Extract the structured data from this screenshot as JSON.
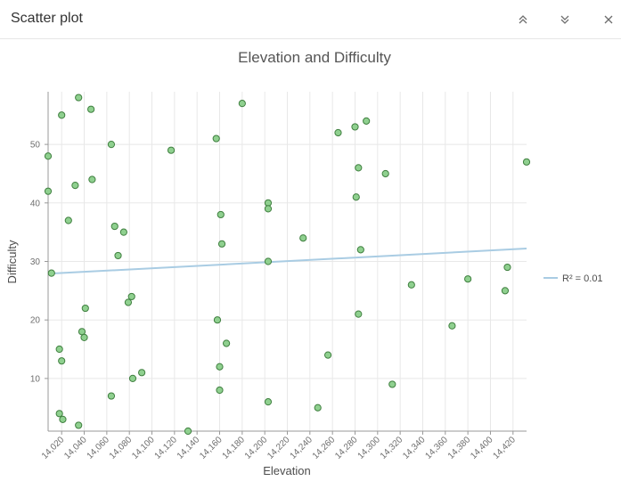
{
  "panel": {
    "title": "Scatter plot"
  },
  "icons": {
    "collapse_up": "double-chevron-up-icon",
    "collapse_down": "double-chevron-down-icon",
    "close": "close-icon"
  },
  "colors": {
    "point_fill": "#8fd08f",
    "point_stroke": "#3f7f3f",
    "trend_line": "#a9cce3",
    "grid": "#e8e8e8",
    "axis": "#999999"
  },
  "chart_data": {
    "type": "scatter",
    "title": "Elevation and Difficulty",
    "xlabel": "Elevation",
    "ylabel": "Difficulty",
    "xlim": [
      14008,
      14432
    ],
    "ylim": [
      1,
      59
    ],
    "xticks": [
      "14,020",
      "14,040",
      "14,060",
      "14,080",
      "14,100",
      "14,120",
      "14,140",
      "14,160",
      "14,180",
      "14,200",
      "14,220",
      "14,240",
      "14,260",
      "14,280",
      "14,300",
      "14,320",
      "14,340",
      "14,360",
      "14,380",
      "14,400",
      "14,420"
    ],
    "yticks": [
      "10",
      "20",
      "30",
      "40",
      "50"
    ],
    "grid": true,
    "legend_position": "right",
    "trendline": {
      "label": "R² = 0.01",
      "start": [
        14008,
        27.9
      ],
      "end": [
        14432,
        32.2
      ]
    },
    "points": [
      [
        14035,
        58
      ],
      [
        14046,
        56
      ],
      [
        14180,
        57
      ],
      [
        14020,
        55
      ],
      [
        14064,
        50
      ],
      [
        14117,
        49
      ],
      [
        14157,
        51
      ],
      [
        14008,
        48
      ],
      [
        14265,
        52
      ],
      [
        14280,
        53
      ],
      [
        14290,
        54
      ],
      [
        14032,
        43
      ],
      [
        14047,
        44
      ],
      [
        14283,
        46
      ],
      [
        14307,
        45
      ],
      [
        14432,
        47
      ],
      [
        14008,
        42
      ],
      [
        14026,
        37
      ],
      [
        14067,
        36
      ],
      [
        14075,
        35
      ],
      [
        14161,
        38
      ],
      [
        14203,
        40
      ],
      [
        14203,
        39
      ],
      [
        14281,
        41
      ],
      [
        14070,
        31
      ],
      [
        14162,
        33
      ],
      [
        14234,
        34
      ],
      [
        14285,
        32
      ],
      [
        14011,
        28
      ],
      [
        14203,
        30
      ],
      [
        14330,
        26
      ],
      [
        14380,
        27
      ],
      [
        14415,
        29
      ],
      [
        14079,
        23
      ],
      [
        14082,
        24
      ],
      [
        14041,
        22
      ],
      [
        14038,
        18
      ],
      [
        14040,
        17
      ],
      [
        14158,
        20
      ],
      [
        14283,
        21
      ],
      [
        14413,
        25
      ],
      [
        14366,
        19
      ],
      [
        14018,
        15
      ],
      [
        14020,
        13
      ],
      [
        14166,
        16
      ],
      [
        14091,
        11
      ],
      [
        14064,
        7
      ],
      [
        14083,
        10
      ],
      [
        14160,
        12
      ],
      [
        14256,
        14
      ],
      [
        14160,
        8
      ],
      [
        14203,
        6
      ],
      [
        14247,
        5
      ],
      [
        14313,
        9
      ],
      [
        14018,
        4
      ],
      [
        14021,
        3
      ],
      [
        14035,
        2
      ],
      [
        14132,
        1
      ]
    ]
  }
}
